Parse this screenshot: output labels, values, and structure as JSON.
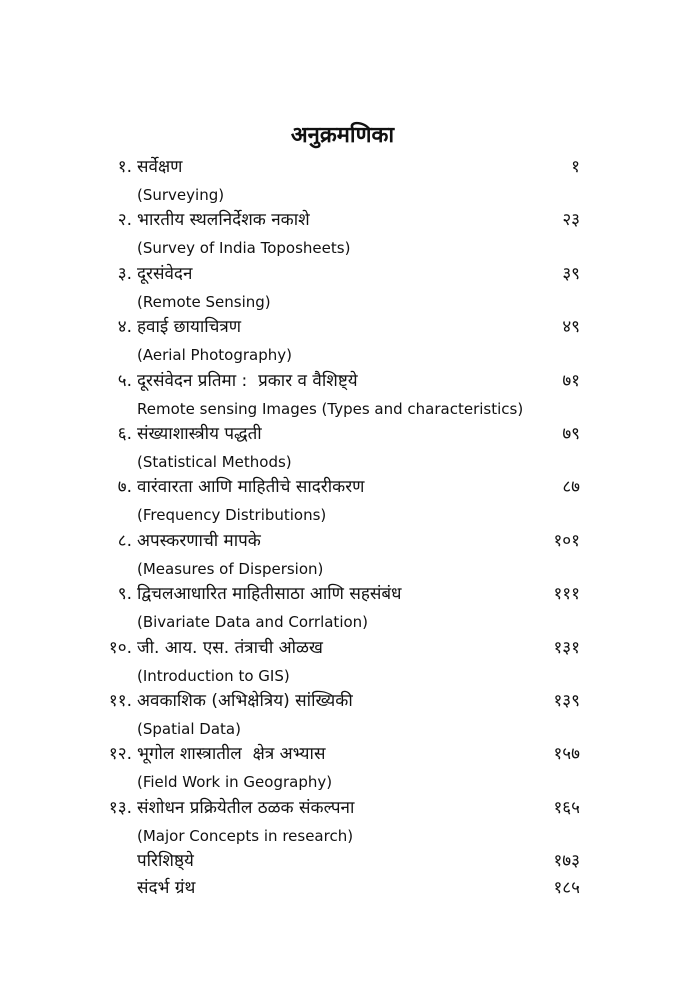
{
  "title": "अनुक्रमणिका",
  "entries": [
    {
      "number": "१.",
      "title": "सर्वेक्षण",
      "page": "१",
      "subtitle": "(Surveying)"
    },
    {
      "number": "२.",
      "title": "भारतीय स्थलनिर्देशक नकाशे",
      "page": "२३",
      "subtitle": "(Survey of India Toposheets)"
    },
    {
      "number": "३.",
      "title": "दूरसंवेदन",
      "page": "३९",
      "subtitle": "(Remote Sensing)"
    },
    {
      "number": "४.",
      "title": "हवाई छायाचित्रण",
      "page": "४९",
      "subtitle": "(Aerial Photography)"
    },
    {
      "number": "५.",
      "title": "दूरसंवेदन प्रतिमा :  प्रकार व वैशिष्ट्ये",
      "page": "७१",
      "subtitle": "Remote sensing Images (Types and characteristics)"
    },
    {
      "number": "६.",
      "title": "संख्याशास्त्रीय पद्धती",
      "page": "७९",
      "subtitle": "(Statistical Methods)"
    },
    {
      "number": "७.",
      "title": "वारंवारता आणि माहितीचे सादरीकरण",
      "page": "८७",
      "subtitle": "(Frequency Distributions)"
    },
    {
      "number": "८.",
      "title": "अपस्करणाची मापके",
      "page": "१०१",
      "subtitle": "(Measures of Dispersion)"
    },
    {
      "number": "९.",
      "title": "द्विचलआधारित माहितीसाठा आणि सहसंबंध",
      "page": "१११",
      "subtitle": "(Bivariate Data and Corrlation)"
    },
    {
      "number": "१०.",
      "title": "जी. आय. एस. तंत्राची ओळख",
      "page": "१३१",
      "subtitle": "(Introduction to GIS)"
    },
    {
      "number": "११.",
      "title": "अवकाशिक (अभिक्षेत्रिय) सांख्यिकी",
      "page": "१३९",
      "subtitle": "(Spatial Data)"
    },
    {
      "number": "१२.",
      "title": "भूगोल शास्त्रातील  क्षेत्र अभ्यास",
      "page": "१५७",
      "subtitle": "(Field Work in Geography)"
    },
    {
      "number": "१३.",
      "title": "संशोधन प्रक्रियेतील ठळक संकल्पना",
      "page": "१६५",
      "subtitle": "(Major Concepts in research)"
    },
    {
      "title": "परिशिष्ठ्ये",
      "page": "१७३"
    },
    {
      "title": "संदर्भ ग्रंथ",
      "page": "१८५"
    }
  ]
}
